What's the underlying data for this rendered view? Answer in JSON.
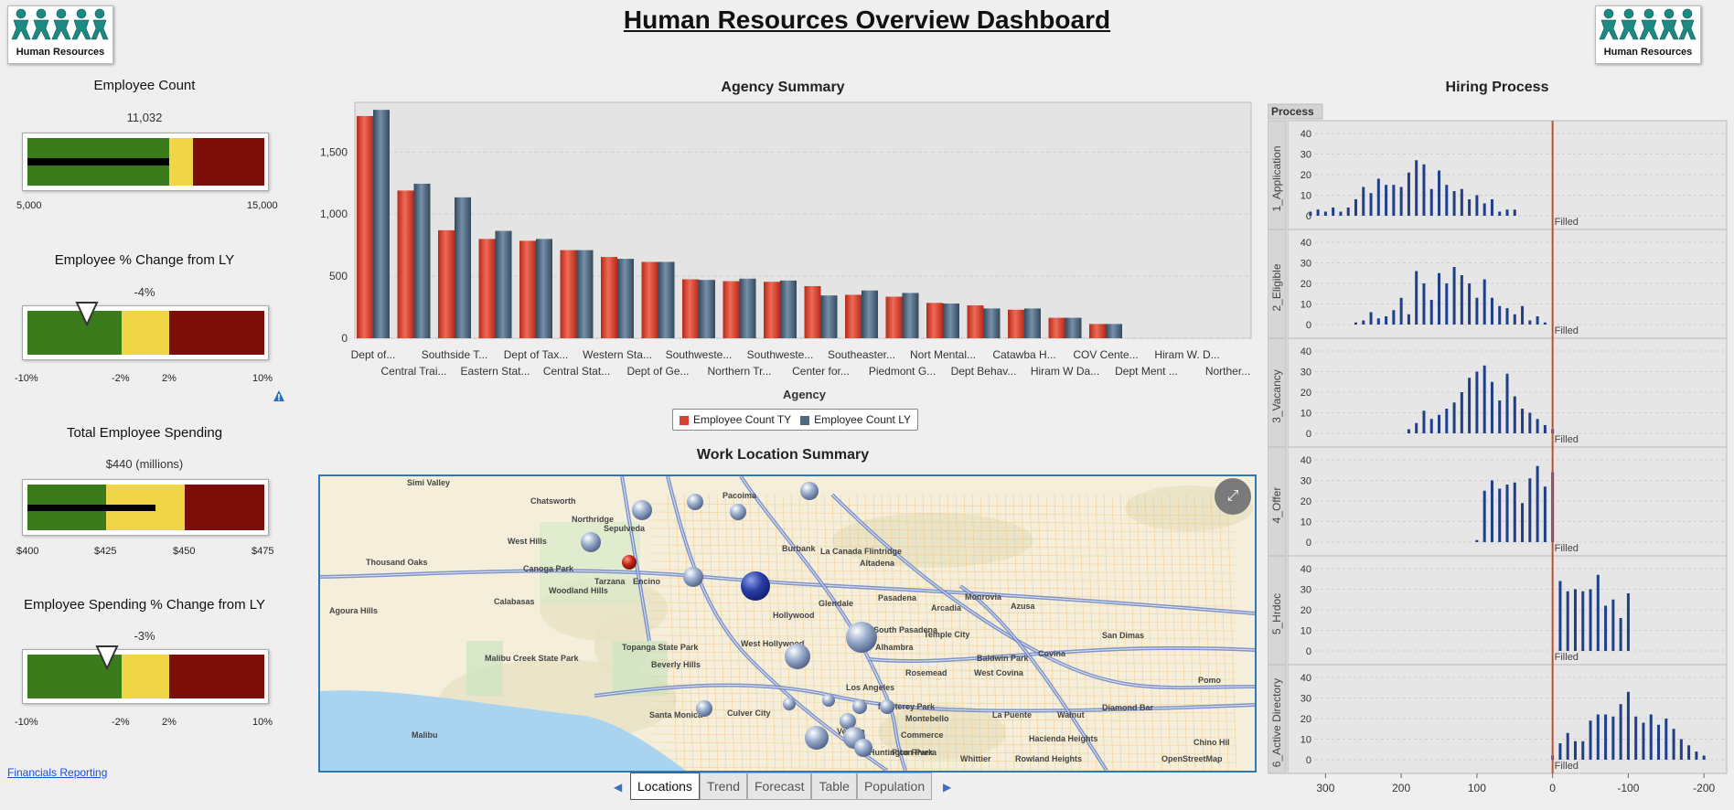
{
  "header": {
    "title": "Human Resources Overview Dashboard",
    "logo_text": "Human Resources"
  },
  "kpis": [
    {
      "title": "Employee Count",
      "value": "11,032",
      "ticks": [
        "5,000",
        "15,000"
      ]
    },
    {
      "title": "Employee % Change from LY",
      "value": "-4%",
      "ticks": [
        "-10%",
        "-2%",
        "2%",
        "10%"
      ]
    },
    {
      "title": "Total Employee Spending",
      "value": "$440 (millions)",
      "ticks": [
        "$400",
        "$425",
        "$450",
        "$475"
      ]
    },
    {
      "title": "Employee Spending % Change from LY",
      "value": "-3%",
      "ticks": [
        "-10%",
        "-2%",
        "2%",
        "10%"
      ]
    }
  ],
  "links": {
    "financials": "Financials Reporting"
  },
  "agency": {
    "title": "Agency Summary",
    "xlabel": "Agency",
    "legend": [
      "Employee Count TY",
      "Employee Count LY"
    ],
    "colors": {
      "ty": "#d9422f",
      "ly": "#4e6982"
    }
  },
  "map": {
    "title": "Work Location Summary",
    "places": [
      "Simi Valley",
      "Chatsworth",
      "Pacoima",
      "Thousand Oaks",
      "West Hills",
      "Canoga Park",
      "Northridge",
      "Sepulveda",
      "Burbank",
      "La Canada Flintridge",
      "Altadena",
      "Agoura Hills",
      "Calabasas",
      "Woodland Hills",
      "Tarzana",
      "Encino",
      "Glendale",
      "Pasadena",
      "Monrovia",
      "Azusa",
      "Arcadia",
      "Hollywood",
      "West Hollywood",
      "Beverly Hills",
      "South Pasadena",
      "Temple City",
      "Alhambra",
      "Baldwin Park",
      "Covina",
      "San Dimas",
      "Rosemead",
      "West Covina",
      "Pomo",
      "Malibu",
      "Santa Monica",
      "Culver City",
      "Los Angeles",
      "Monterey Park",
      "Montebello",
      "La Puente",
      "Walnut",
      "Diamond Bar",
      "Vernon",
      "Commerce",
      "Huntington Park",
      "Pico Rivera",
      "Whittier",
      "Rowland Heights",
      "Hacienda Heights",
      "Chino Hil",
      "Topanga State Park",
      "Malibu Creek State Park",
      "OpenStreetMap"
    ]
  },
  "tabs": {
    "items": [
      "Locations",
      "Trend",
      "Forecast",
      "Table",
      "Population"
    ],
    "active": "Locations"
  },
  "hiring": {
    "title": "Hiring Process",
    "header": "Process",
    "filled_label": "Filled",
    "y_ticks": [
      "40",
      "30",
      "20",
      "10",
      "0"
    ],
    "x_ticks": [
      "300",
      "200",
      "100",
      "0",
      "-100",
      "-200"
    ]
  },
  "chart_data": [
    {
      "type": "bar",
      "title": "Agency Summary",
      "xlabel": "Agency",
      "ylabel": "",
      "ylim": [
        0,
        1900
      ],
      "yticks": [
        "0",
        "500",
        "1,000",
        "1,500"
      ],
      "categories": [
        "Dept of...",
        "Central Trai...",
        "Southside T...",
        "Eastern Stat...",
        "Dept of Tax...",
        "Central Stat...",
        "Western Sta...",
        "Dept of Ge...",
        "Southweste...",
        "Northern Tr...",
        "Southweste...",
        "Center for...",
        "Southeaster...",
        "Piedmont G...",
        "Nort Mental...",
        "Dept Behav...",
        "Catawba H...",
        "Hiram W Da...",
        "COV Cente...",
        "Dept Ment ...",
        "Hiram W. D...",
        "Norther..."
      ],
      "series": [
        {
          "name": "Employee Count TY",
          "values": [
            1790,
            1190,
            870,
            800,
            785,
            710,
            655,
            615,
            475,
            460,
            455,
            420,
            350,
            335,
            285,
            265,
            230,
            165,
            115,
            0,
            0,
            0
          ]
        },
        {
          "name": "Employee Count LY",
          "values": [
            1840,
            1245,
            1135,
            865,
            800,
            710,
            640,
            615,
            470,
            480,
            465,
            345,
            385,
            365,
            280,
            240,
            240,
            165,
            115,
            0,
            0,
            0
          ]
        }
      ],
      "legend": "bottom",
      "grid": true
    },
    {
      "type": "bar",
      "title": "Hiring Process",
      "xlabel": "",
      "xlim": [
        350,
        -230
      ],
      "ylim": [
        0,
        45
      ],
      "reference_line": {
        "x": 0,
        "label": "Filled"
      },
      "panels": [
        {
          "name": "1_Application",
          "x": [
            320,
            310,
            300,
            290,
            280,
            270,
            260,
            250,
            240,
            230,
            220,
            210,
            200,
            190,
            180,
            170,
            160,
            150,
            140,
            130,
            120,
            110,
            100,
            90,
            80,
            70,
            60,
            50
          ],
          "y": [
            2,
            3,
            2,
            4,
            2,
            4,
            8,
            14,
            11,
            18,
            15,
            15,
            14,
            21,
            27,
            25,
            13,
            22,
            15,
            12,
            13,
            8,
            10,
            6,
            8,
            2,
            3,
            3
          ]
        },
        {
          "name": "2_Eligible",
          "x": [
            260,
            250,
            240,
            230,
            220,
            210,
            200,
            190,
            180,
            170,
            160,
            150,
            140,
            130,
            120,
            110,
            100,
            90,
            80,
            70,
            60,
            50,
            40,
            30,
            20,
            10
          ],
          "y": [
            1,
            2,
            6,
            3,
            4,
            7,
            13,
            5,
            26,
            20,
            12,
            25,
            20,
            28,
            24,
            20,
            13,
            22,
            13,
            9,
            8,
            5,
            9,
            2,
            4,
            1
          ]
        },
        {
          "name": "3_Vacancy",
          "x": [
            190,
            180,
            170,
            160,
            150,
            140,
            130,
            120,
            110,
            100,
            90,
            80,
            70,
            60,
            50,
            40,
            30,
            20,
            10,
            0
          ],
          "y": [
            2,
            5,
            11,
            7,
            9,
            12,
            15,
            20,
            27,
            30,
            33,
            25,
            16,
            29,
            18,
            12,
            10,
            7,
            4,
            2
          ]
        },
        {
          "name": "4_Offer",
          "x": [
            100,
            90,
            80,
            70,
            60,
            50,
            40,
            30,
            20,
            10,
            0
          ],
          "y": [
            1,
            25,
            30,
            26,
            28,
            29,
            19,
            31,
            37,
            27,
            34
          ]
        },
        {
          "name": "5_Hrdoc",
          "x": [
            -10,
            -20,
            -30,
            -40,
            -50,
            -60,
            -70,
            -80,
            -90,
            -100
          ],
          "y": [
            34,
            29,
            30,
            29,
            30,
            37,
            22,
            25,
            16,
            28
          ]
        },
        {
          "name": "6_Active Directory",
          "x": [
            0,
            -10,
            -20,
            -30,
            -40,
            -50,
            -60,
            -70,
            -80,
            -90,
            -100,
            -110,
            -120,
            -130,
            -140,
            -150,
            -160,
            -170,
            -180,
            -190,
            -200
          ],
          "y": [
            2,
            8,
            13,
            9,
            9,
            19,
            22,
            22,
            21,
            27,
            33,
            21,
            18,
            22,
            17,
            20,
            15,
            10,
            7,
            4,
            2
          ]
        }
      ]
    }
  ]
}
